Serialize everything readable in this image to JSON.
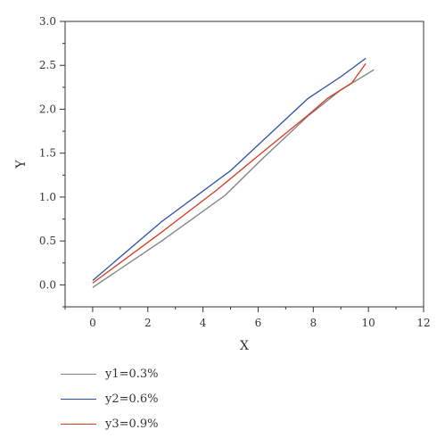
{
  "chart_data": {
    "type": "line",
    "title": "",
    "xlabel": "X",
    "ylabel": "Y",
    "xlim": [
      -1,
      12
    ],
    "ylim": [
      -0.25,
      3.0
    ],
    "xticks": [
      0,
      2,
      4,
      6,
      8,
      10,
      12
    ],
    "yticks": [
      0.0,
      0.5,
      1.0,
      1.5,
      2.0,
      2.5,
      3.0
    ],
    "xtick_labels": [
      "0",
      "2",
      "4",
      "6",
      "8",
      "10",
      "12"
    ],
    "ytick_labels": [
      "0.0",
      "0.5",
      "1.0",
      "1.5",
      "2.0",
      "2.5",
      "3.0"
    ],
    "grid": false,
    "legend_position": "bottom-left, below plot",
    "series": [
      {
        "name": "y1=0.3%",
        "color": "#7f7f7f",
        "x": [
          0,
          2.5,
          4.8,
          6.2,
          7.8,
          9.0,
          10.2
        ],
        "y": [
          -0.03,
          0.5,
          1.02,
          1.45,
          1.92,
          2.22,
          2.45
        ]
      },
      {
        "name": "y2=0.6%",
        "color": "#2b4fa8",
        "x": [
          0,
          2.5,
          5.0,
          7.8,
          9.0,
          9.9
        ],
        "y": [
          0.05,
          0.72,
          1.3,
          2.12,
          2.37,
          2.58
        ]
      },
      {
        "name": "y3=0.9%",
        "color": "#d23a1f",
        "x": [
          0,
          2.5,
          4.5,
          6.0,
          7.8,
          8.5,
          9.4,
          9.9
        ],
        "y": [
          0.02,
          0.6,
          1.08,
          1.47,
          1.93,
          2.12,
          2.3,
          2.52
        ]
      }
    ]
  }
}
